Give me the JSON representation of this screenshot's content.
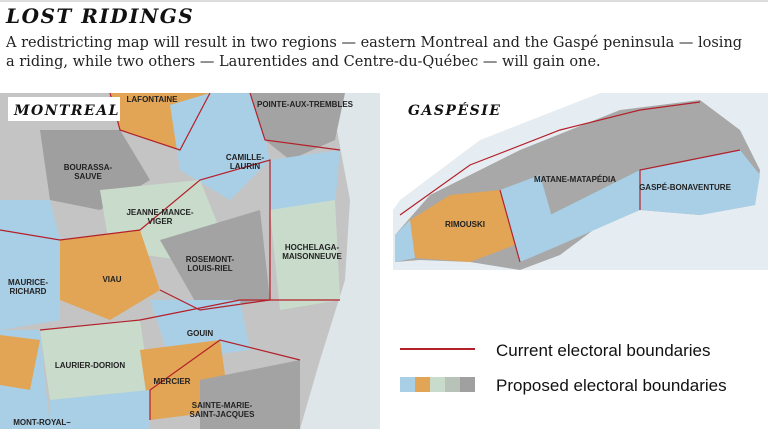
{
  "header": {
    "title": "LOST RIDINGS",
    "subtitle": "A redistricting map will result in two regions — eastern Montreal and the Gaspé peninsula — losing a riding, while two others — Laurentides and Centre-du-Québec — will gain one."
  },
  "maps": [
    {
      "label": "MONTREAL",
      "ridings": [
        {
          "lines": [
            "LAFONTAINE"
          ]
        },
        {
          "lines": [
            "POINTE-AUX-TREMBLES"
          ]
        },
        {
          "lines": [
            "BOURASSA-",
            "SAUVE"
          ]
        },
        {
          "lines": [
            "CAMILLE-",
            "LAURIN"
          ]
        },
        {
          "lines": [
            "JEANNE-MANCE-",
            "VIGER"
          ]
        },
        {
          "lines": [
            "ROSEMONT-",
            "LOUIS-RIEL"
          ]
        },
        {
          "lines": [
            "HOCHELAGA-",
            "MAISONNEUVE"
          ]
        },
        {
          "lines": [
            "MAURICE-",
            "RICHARD"
          ]
        },
        {
          "lines": [
            "VIAU"
          ]
        },
        {
          "lines": [
            "GOUIN"
          ]
        },
        {
          "lines": [
            "LAURIER-DORION"
          ]
        },
        {
          "lines": [
            "MERCIER"
          ]
        },
        {
          "lines": [
            "SAINTE-MARIE-",
            "SAINT-JACQUES"
          ]
        },
        {
          "lines": [
            "MONT-ROYAL–"
          ]
        }
      ]
    },
    {
      "label": "GASPÉSIE",
      "ridings": [
        {
          "lines": [
            "MATANE-MATAPÉDIA"
          ]
        },
        {
          "lines": [
            "GASPÉ-BONAVENTURE"
          ]
        },
        {
          "lines": [
            "RIMOUSKI"
          ]
        }
      ]
    }
  ],
  "legend": [
    {
      "label": "Current electoral boundaries"
    },
    {
      "label": "Proposed electoral boundaries"
    }
  ]
}
